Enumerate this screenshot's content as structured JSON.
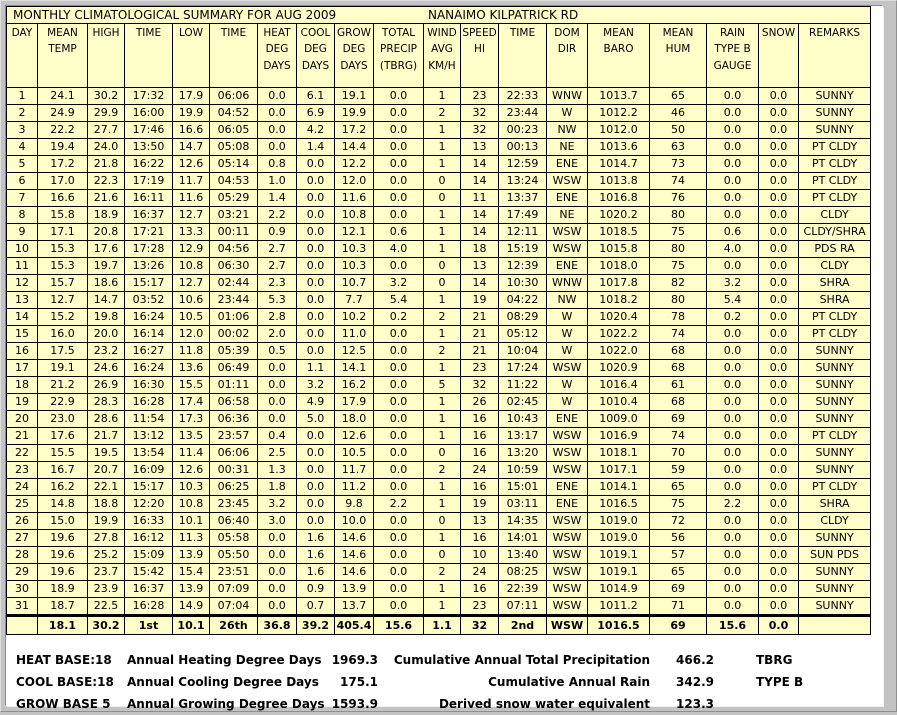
{
  "window": {
    "title_left": "MONTHLY CLIMATOLOGICAL SUMMARY FOR AUG 2009",
    "title_right": "NANAIMO KILPATRICK RD"
  },
  "colors": {
    "table_bg": "#FFFFC9",
    "frame_gray": "#C3C3C3",
    "content_bg": "#FFFFFF",
    "grid": "#000000"
  },
  "table": {
    "columns": [
      "DAY",
      "MEAN\nTEMP",
      "HIGH",
      "TIME",
      "LOW",
      "TIME",
      "HEAT\nDEG\nDAYS",
      "COOL\nDEG\nDAYS",
      "GROW\nDEG\nDAYS",
      "TOTAL\nPRECIP\n(TBRG)",
      "WIND\nAVG\nKM/H",
      "SPEED\nHI",
      "TIME",
      "DOM\nDIR",
      "MEAN\nBARO",
      "MEAN\nHUM",
      "RAIN\nTYPE B\nGAUGE",
      "SNOW",
      "REMARKS"
    ],
    "rows": [
      [
        "1",
        "24.1",
        "30.2",
        "17:32",
        "17.9",
        "06:06",
        "0.0",
        "6.1",
        "19.1",
        "0.0",
        "1",
        "23",
        "22:33",
        "WNW",
        "1013.7",
        "65",
        "0.0",
        "0.0",
        "SUNNY"
      ],
      [
        "2",
        "24.9",
        "29.9",
        "16:00",
        "19.9",
        "04:52",
        "0.0",
        "6.9",
        "19.9",
        "0.0",
        "2",
        "32",
        "23:44",
        "W",
        "1012.2",
        "46",
        "0.0",
        "0.0",
        "SUNNY"
      ],
      [
        "3",
        "22.2",
        "27.7",
        "17:46",
        "16.6",
        "06:05",
        "0.0",
        "4.2",
        "17.2",
        "0.0",
        "1",
        "32",
        "00:23",
        "NW",
        "1012.0",
        "50",
        "0.0",
        "0.0",
        "SUNNY"
      ],
      [
        "4",
        "19.4",
        "24.0",
        "13:50",
        "14.7",
        "05:08",
        "0.0",
        "1.4",
        "14.4",
        "0.0",
        "1",
        "13",
        "00:13",
        "NE",
        "1013.6",
        "63",
        "0.0",
        "0.0",
        "PT CLDY"
      ],
      [
        "5",
        "17.2",
        "21.8",
        "16:22",
        "12.6",
        "05:14",
        "0.8",
        "0.0",
        "12.2",
        "0.0",
        "1",
        "14",
        "12:59",
        "ENE",
        "1014.7",
        "73",
        "0.0",
        "0.0",
        "PT CLDY"
      ],
      [
        "6",
        "17.0",
        "22.3",
        "17:19",
        "11.7",
        "04:53",
        "1.0",
        "0.0",
        "12.0",
        "0.0",
        "0",
        "14",
        "13:24",
        "WSW",
        "1013.8",
        "74",
        "0.0",
        "0.0",
        "PT CLDY"
      ],
      [
        "7",
        "16.6",
        "21.6",
        "16:11",
        "11.6",
        "05:29",
        "1.4",
        "0.0",
        "11.6",
        "0.0",
        "0",
        "11",
        "13:37",
        "ENE",
        "1016.8",
        "76",
        "0.0",
        "0.0",
        "PT CLDY"
      ],
      [
        "8",
        "15.8",
        "18.9",
        "16:37",
        "12.7",
        "03:21",
        "2.2",
        "0.0",
        "10.8",
        "0.0",
        "1",
        "14",
        "17:49",
        "NE",
        "1020.2",
        "80",
        "0.0",
        "0.0",
        "CLDY"
      ],
      [
        "9",
        "17.1",
        "20.8",
        "17:21",
        "13.3",
        "00:11",
        "0.9",
        "0.0",
        "12.1",
        "0.6",
        "1",
        "14",
        "12:11",
        "WSW",
        "1018.5",
        "75",
        "0.6",
        "0.0",
        "CLDY/SHRA"
      ],
      [
        "10",
        "15.3",
        "17.6",
        "17:28",
        "12.9",
        "04:56",
        "2.7",
        "0.0",
        "10.3",
        "4.0",
        "1",
        "18",
        "15:19",
        "WSW",
        "1015.8",
        "80",
        "4.0",
        "0.0",
        "PDS RA"
      ],
      [
        "11",
        "15.3",
        "19.7",
        "13:26",
        "10.8",
        "06:30",
        "2.7",
        "0.0",
        "10.3",
        "0.0",
        "0",
        "13",
        "12:39",
        "ENE",
        "1018.0",
        "75",
        "0.0",
        "0.0",
        "CLDY"
      ],
      [
        "12",
        "15.7",
        "18.6",
        "15:17",
        "12.7",
        "02:44",
        "2.3",
        "0.0",
        "10.7",
        "3.2",
        "0",
        "14",
        "10:30",
        "WNW",
        "1017.8",
        "82",
        "3.2",
        "0.0",
        "SHRA"
      ],
      [
        "13",
        "12.7",
        "14.7",
        "03:52",
        "10.6",
        "23:44",
        "5.3",
        "0.0",
        "7.7",
        "5.4",
        "1",
        "19",
        "04:22",
        "NW",
        "1018.2",
        "80",
        "5.4",
        "0.0",
        "SHRA"
      ],
      [
        "14",
        "15.2",
        "19.8",
        "16:24",
        "10.5",
        "01:06",
        "2.8",
        "0.0",
        "10.2",
        "0.2",
        "2",
        "21",
        "08:29",
        "W",
        "1020.4",
        "78",
        "0.2",
        "0.0",
        "PT CLDY"
      ],
      [
        "15",
        "16.0",
        "20.0",
        "16:14",
        "12.0",
        "00:02",
        "2.0",
        "0.0",
        "11.0",
        "0.0",
        "1",
        "21",
        "05:12",
        "W",
        "1022.2",
        "74",
        "0.0",
        "0.0",
        "PT CLDY"
      ],
      [
        "16",
        "17.5",
        "23.2",
        "16:27",
        "11.8",
        "05:39",
        "0.5",
        "0.0",
        "12.5",
        "0.0",
        "2",
        "21",
        "10:04",
        "W",
        "1022.0",
        "68",
        "0.0",
        "0.0",
        "SUNNY"
      ],
      [
        "17",
        "19.1",
        "24.6",
        "16:24",
        "13.6",
        "06:49",
        "0.0",
        "1.1",
        "14.1",
        "0.0",
        "1",
        "23",
        "17:24",
        "WSW",
        "1020.9",
        "68",
        "0.0",
        "0.0",
        "SUNNY"
      ],
      [
        "18",
        "21.2",
        "26.9",
        "16:30",
        "15.5",
        "01:11",
        "0.0",
        "3.2",
        "16.2",
        "0.0",
        "5",
        "32",
        "11:22",
        "W",
        "1016.4",
        "61",
        "0.0",
        "0.0",
        "SUNNY"
      ],
      [
        "19",
        "22.9",
        "28.3",
        "16:28",
        "17.4",
        "06:58",
        "0.0",
        "4.9",
        "17.9",
        "0.0",
        "1",
        "26",
        "02:45",
        "W",
        "1010.4",
        "68",
        "0.0",
        "0.0",
        "SUNNY"
      ],
      [
        "20",
        "23.0",
        "28.6",
        "11:54",
        "17.3",
        "06:36",
        "0.0",
        "5.0",
        "18.0",
        "0.0",
        "1",
        "16",
        "10:43",
        "ENE",
        "1009.0",
        "69",
        "0.0",
        "0.0",
        "SUNNY"
      ],
      [
        "21",
        "17.6",
        "21.7",
        "13:12",
        "13.5",
        "23:57",
        "0.4",
        "0.0",
        "12.6",
        "0.0",
        "1",
        "16",
        "13:17",
        "WSW",
        "1016.9",
        "74",
        "0.0",
        "0.0",
        "PT CLDY"
      ],
      [
        "22",
        "15.5",
        "19.5",
        "13:54",
        "11.4",
        "06:06",
        "2.5",
        "0.0",
        "10.5",
        "0.0",
        "0",
        "16",
        "13:20",
        "WSW",
        "1018.1",
        "70",
        "0.0",
        "0.0",
        "SUNNY"
      ],
      [
        "23",
        "16.7",
        "20.7",
        "16:09",
        "12.6",
        "00:31",
        "1.3",
        "0.0",
        "11.7",
        "0.0",
        "2",
        "24",
        "10:59",
        "WSW",
        "1017.1",
        "59",
        "0.0",
        "0.0",
        "SUNNY"
      ],
      [
        "24",
        "16.2",
        "22.1",
        "15:17",
        "10.3",
        "06:25",
        "1.8",
        "0.0",
        "11.2",
        "0.0",
        "1",
        "16",
        "15:01",
        "ENE",
        "1014.1",
        "65",
        "0.0",
        "0.0",
        "PT CLDY"
      ],
      [
        "25",
        "14.8",
        "18.8",
        "12:20",
        "10.8",
        "23:45",
        "3.2",
        "0.0",
        "9.8",
        "2.2",
        "1",
        "19",
        "03:11",
        "ENE",
        "1016.5",
        "75",
        "2.2",
        "0.0",
        "SHRA"
      ],
      [
        "26",
        "15.0",
        "19.9",
        "16:33",
        "10.1",
        "06:40",
        "3.0",
        "0.0",
        "10.0",
        "0.0",
        "0",
        "13",
        "14:35",
        "WSW",
        "1019.0",
        "72",
        "0.0",
        "0.0",
        "CLDY"
      ],
      [
        "27",
        "19.6",
        "27.8",
        "16:12",
        "11.3",
        "05:58",
        "0.0",
        "1.6",
        "14.6",
        "0.0",
        "1",
        "16",
        "14:01",
        "WSW",
        "1019.0",
        "56",
        "0.0",
        "0.0",
        "SUNNY"
      ],
      [
        "28",
        "19.6",
        "25.2",
        "15:09",
        "13.9",
        "05:50",
        "0.0",
        "1.6",
        "14.6",
        "0.0",
        "0",
        "10",
        "13:40",
        "WSW",
        "1019.1",
        "57",
        "0.0",
        "0.0",
        "SUN PDS"
      ],
      [
        "29",
        "19.6",
        "23.7",
        "15:42",
        "15.4",
        "23:51",
        "0.0",
        "1.6",
        "14.6",
        "0.0",
        "2",
        "24",
        "08:25",
        "WSW",
        "1019.1",
        "65",
        "0.0",
        "0.0",
        "SUNNY"
      ],
      [
        "30",
        "18.9",
        "23.9",
        "16:37",
        "13.9",
        "07:09",
        "0.0",
        "0.9",
        "13.9",
        "0.0",
        "1",
        "16",
        "22:39",
        "WSW",
        "1014.9",
        "69",
        "0.0",
        "0.0",
        "SUNNY"
      ],
      [
        "31",
        "18.7",
        "22.5",
        "16:28",
        "14.9",
        "07:04",
        "0.0",
        "0.7",
        "13.7",
        "0.0",
        "1",
        "23",
        "07:11",
        "WSW",
        "1011.2",
        "71",
        "0.0",
        "0.0",
        "SUNNY"
      ]
    ],
    "summary": [
      "",
      "18.1",
      "30.2",
      "1st",
      "10.1",
      "26th",
      "36.8",
      "39.2",
      "405.4",
      "15.6",
      "1.1",
      "32",
      "2nd",
      "WSW",
      "1016.5",
      "69",
      "15.6",
      "0.0",
      ""
    ]
  },
  "footer": {
    "rows": [
      {
        "label": "HEAT BASE:18",
        "desc": "Annual Heating Degree Days",
        "value": "1969.3",
        "desc2": "Cumulative Annual Total Precipitation",
        "value2": "466.2",
        "tag": "TBRG"
      },
      {
        "label": "COOL BASE:18",
        "desc": "Annual Cooling Degree Days",
        "value": "175.1",
        "desc2": "Cumulative Annual Rain",
        "value2": "342.9",
        "tag": "TYPE B"
      },
      {
        "label": "GROW BASE 5",
        "desc": "Annual Growing Degree Days",
        "value": "1593.9",
        "desc2": "Derived snow water equivalent",
        "value2": "123.3",
        "tag": ""
      }
    ]
  }
}
